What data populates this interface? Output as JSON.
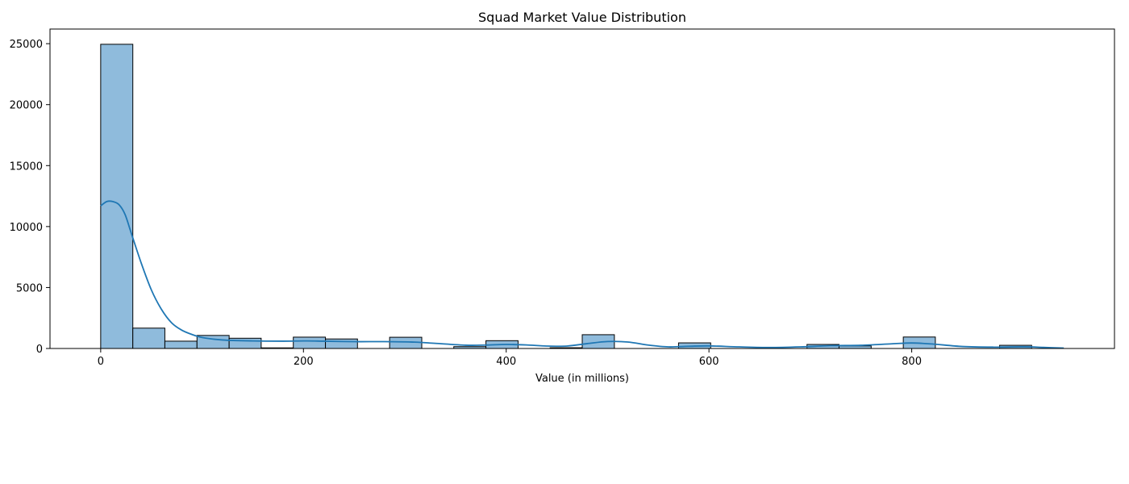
{
  "chart_data": {
    "type": "bar",
    "title": "Squad Market Value Distribution",
    "xlabel": "Value (in millions)",
    "ylabel": "",
    "xlim": [
      -50,
      1000
    ],
    "ylim": [
      0,
      26200
    ],
    "xticks": [
      0,
      200,
      400,
      600,
      800
    ],
    "yticks": [
      0,
      5000,
      10000,
      15000,
      20000,
      25000
    ],
    "grid": false,
    "bin_width": 31.7,
    "bins": [
      {
        "start": 0.0,
        "end": 31.7,
        "count": 24950
      },
      {
        "start": 31.7,
        "end": 63.3,
        "count": 1670
      },
      {
        "start": 63.3,
        "end": 95.0,
        "count": 600
      },
      {
        "start": 95.0,
        "end": 126.7,
        "count": 1070
      },
      {
        "start": 126.7,
        "end": 158.3,
        "count": 840
      },
      {
        "start": 158.3,
        "end": 190.0,
        "count": 50
      },
      {
        "start": 190.0,
        "end": 221.7,
        "count": 930
      },
      {
        "start": 221.7,
        "end": 253.3,
        "count": 780
      },
      {
        "start": 253.3,
        "end": 285.0,
        "count": 0
      },
      {
        "start": 285.0,
        "end": 316.7,
        "count": 920
      },
      {
        "start": 316.7,
        "end": 348.3,
        "count": 0
      },
      {
        "start": 348.3,
        "end": 380.0,
        "count": 150
      },
      {
        "start": 380.0,
        "end": 411.7,
        "count": 640
      },
      {
        "start": 411.7,
        "end": 443.3,
        "count": 0
      },
      {
        "start": 443.3,
        "end": 475.0,
        "count": 60
      },
      {
        "start": 475.0,
        "end": 506.7,
        "count": 1130
      },
      {
        "start": 506.7,
        "end": 538.3,
        "count": 0
      },
      {
        "start": 538.3,
        "end": 570.0,
        "count": 0
      },
      {
        "start": 570.0,
        "end": 601.7,
        "count": 460
      },
      {
        "start": 601.7,
        "end": 633.3,
        "count": 0
      },
      {
        "start": 633.3,
        "end": 665.0,
        "count": 0
      },
      {
        "start": 665.0,
        "end": 696.7,
        "count": 0
      },
      {
        "start": 696.7,
        "end": 728.3,
        "count": 330
      },
      {
        "start": 728.3,
        "end": 760.0,
        "count": 210
      },
      {
        "start": 760.0,
        "end": 791.7,
        "count": 0
      },
      {
        "start": 791.7,
        "end": 823.3,
        "count": 940
      },
      {
        "start": 823.3,
        "end": 855.0,
        "count": 0
      },
      {
        "start": 855.0,
        "end": 886.7,
        "count": 0
      },
      {
        "start": 886.7,
        "end": 918.3,
        "count": 260
      },
      {
        "start": 918.3,
        "end": 950.0,
        "count": 0
      }
    ],
    "kde": {
      "x": [
        0,
        6,
        12,
        18,
        24,
        30,
        40,
        50,
        60,
        70,
        80,
        90,
        100,
        120,
        150,
        180,
        200,
        220,
        250,
        280,
        310,
        330,
        360,
        380,
        400,
        420,
        440,
        460,
        480,
        500,
        520,
        540,
        560,
        580,
        600,
        630,
        660,
        690,
        720,
        750,
        780,
        800,
        820,
        850,
        880,
        910,
        930,
        950
      ],
      "y": [
        11700,
        12050,
        12050,
        11800,
        11000,
        9500,
        7000,
        4800,
        3200,
        2100,
        1500,
        1150,
        900,
        700,
        620,
        600,
        620,
        600,
        560,
        560,
        520,
        420,
        270,
        280,
        330,
        290,
        200,
        200,
        400,
        570,
        530,
        280,
        130,
        180,
        210,
        130,
        80,
        130,
        230,
        260,
        380,
        450,
        370,
        160,
        110,
        140,
        90,
        30
      ]
    },
    "colors": {
      "bar_fill": "#8fbbdc",
      "bar_edge": "#000000",
      "kde_line": "#1f77b4"
    }
  }
}
